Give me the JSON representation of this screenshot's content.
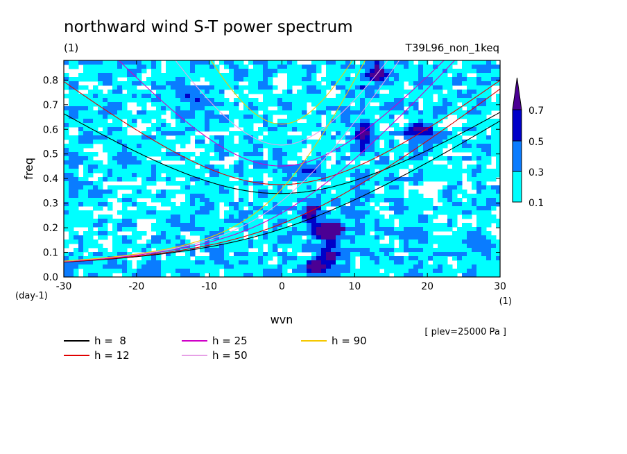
{
  "chart_data": {
    "type": "heatmap",
    "title": "northward wind S-T power spectrum",
    "subtitle_left": "(1)",
    "subtitle_right": "T39L96_non_1keq",
    "xlabel": "wvn",
    "ylabel": "freq",
    "x_unit": "(1)",
    "y_unit": "(day-1)",
    "xlim": [
      -30,
      30
    ],
    "ylim": [
      0,
      0.88
    ],
    "x_ticks": [
      -30,
      -20,
      -10,
      0,
      10,
      20,
      30
    ],
    "x_tick_labels": [
      "-30",
      "-20",
      "-10",
      "0",
      "10",
      "20",
      "30"
    ],
    "y_ticks": [
      0,
      0.1,
      0.2,
      0.3,
      0.4,
      0.5,
      0.6,
      0.7,
      0.8
    ],
    "y_tick_labels": [
      "0.0",
      "0.1",
      "0.2",
      "0.3",
      "0.4",
      "0.5",
      "0.6",
      "0.7",
      "0.8"
    ],
    "plev_note": "[ plev=25000 Pa ]",
    "colorbar": {
      "levels": [
        0.1,
        0.3,
        0.5,
        0.7
      ],
      "labels": [
        "0.1",
        "0.3",
        "0.5",
        "0.7"
      ],
      "colors": [
        "#00ffff",
        "#0a7cff",
        "#0000c8",
        "#4b0094"
      ]
    },
    "dispersion_curves": [
      {
        "label": "h =  8",
        "h": 8,
        "color": "#000000"
      },
      {
        "label": "h = 12",
        "h": 12,
        "color": "#e00000"
      },
      {
        "label": "h = 25",
        "h": 25,
        "color": "#d000c8"
      },
      {
        "label": "h = 50",
        "h": 50,
        "color": "#e6a0e6"
      },
      {
        "label": "h = 90",
        "h": 90,
        "color": "#f5c800"
      }
    ],
    "hotspots": [
      {
        "k": 5,
        "f": 0.04,
        "v": 0.75
      },
      {
        "k": 6,
        "f": 0.18,
        "v": 0.7
      },
      {
        "k": 7,
        "f": 0.2,
        "v": 0.6
      },
      {
        "k": 4,
        "f": 0.26,
        "v": 0.45
      },
      {
        "k": 11,
        "f": 0.58,
        "v": 0.55
      },
      {
        "k": 13,
        "f": 0.83,
        "v": 0.6
      },
      {
        "k": 7,
        "f": 0.1,
        "v": 0.45
      },
      {
        "k": -12,
        "f": 0.72,
        "v": 0.4
      },
      {
        "k": 3,
        "f": 0.44,
        "v": 0.35
      },
      {
        "k": 19,
        "f": 0.6,
        "v": 0.4
      }
    ]
  }
}
